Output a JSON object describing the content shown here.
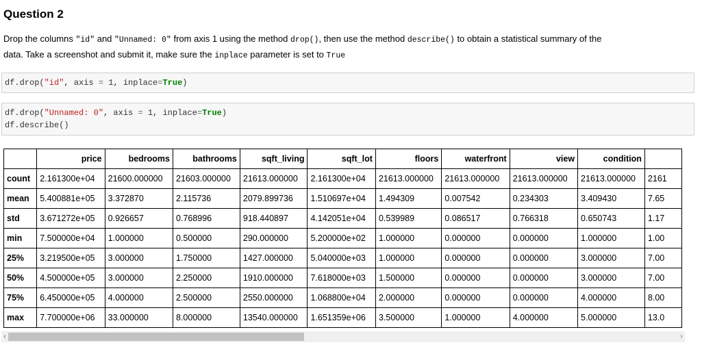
{
  "question": {
    "title": "Question 2",
    "line1_a": "Drop the columns ",
    "line1_b": "\"id\"",
    "line1_c": " and ",
    "line1_d": "\"Unnamed: 0\"",
    "line1_e": " from axis 1 using the method ",
    "line1_f": "drop()",
    "line1_g": ", then use the method ",
    "line1_h": "describe()",
    "line1_i": " to obtain a statistical summary of the",
    "line2_a": "data. Take a screenshot and submit it, make sure the ",
    "line2_b": "inplace",
    "line2_c": " parameter is set to ",
    "line2_d": "True"
  },
  "cell1": {
    "p1": "df.drop(",
    "s1": "\"id\"",
    "p2": ", axis ",
    "o1": "=",
    "p3": " 1, inplace",
    "o2": "=",
    "k1": "True",
    "p4": ")"
  },
  "cell2": {
    "p1": "df.drop(",
    "s1": "\"Unnamed: 0\"",
    "p2": ", axis ",
    "o1": "=",
    "p3": " 1, inplace",
    "o2": "=",
    "k1": "True",
    "p4": ")",
    "line2": "df.describe()"
  },
  "table": {
    "columns": [
      "",
      "price",
      "bedrooms",
      "bathrooms",
      "sqft_living",
      "sqft_lot",
      "floors",
      "waterfront",
      "view",
      "condition",
      ""
    ],
    "rows": [
      {
        "label": "count",
        "cells": [
          "2.161300e+04",
          "21600.000000",
          "21603.000000",
          "21613.000000",
          "2.161300e+04",
          "21613.000000",
          "21613.000000",
          "21613.000000",
          "21613.000000",
          "2161"
        ]
      },
      {
        "label": "mean",
        "cells": [
          "5.400881e+05",
          "3.372870",
          "2.115736",
          "2079.899736",
          "1.510697e+04",
          "1.494309",
          "0.007542",
          "0.234303",
          "3.409430",
          "7.65"
        ]
      },
      {
        "label": "std",
        "cells": [
          "3.671272e+05",
          "0.926657",
          "0.768996",
          "918.440897",
          "4.142051e+04",
          "0.539989",
          "0.086517",
          "0.766318",
          "0.650743",
          "1.17"
        ]
      },
      {
        "label": "min",
        "cells": [
          "7.500000e+04",
          "1.000000",
          "0.500000",
          "290.000000",
          "5.200000e+02",
          "1.000000",
          "0.000000",
          "0.000000",
          "1.000000",
          "1.00"
        ]
      },
      {
        "label": "25%",
        "cells": [
          "3.219500e+05",
          "3.000000",
          "1.750000",
          "1427.000000",
          "5.040000e+03",
          "1.000000",
          "0.000000",
          "0.000000",
          "3.000000",
          "7.00"
        ]
      },
      {
        "label": "50%",
        "cells": [
          "4.500000e+05",
          "3.000000",
          "2.250000",
          "1910.000000",
          "7.618000e+03",
          "1.500000",
          "0.000000",
          "0.000000",
          "3.000000",
          "7.00"
        ]
      },
      {
        "label": "75%",
        "cells": [
          "6.450000e+05",
          "4.000000",
          "2.500000",
          "2550.000000",
          "1.068800e+04",
          "2.000000",
          "0.000000",
          "0.000000",
          "4.000000",
          "8.00"
        ]
      },
      {
        "label": "max",
        "cells": [
          "7.700000e+06",
          "33.000000",
          "8.000000",
          "13540.000000",
          "1.651359e+06",
          "3.500000",
          "1.000000",
          "4.000000",
          "5.000000",
          "13.0"
        ]
      }
    ]
  },
  "scrollbar": {
    "left_arrow": "‹",
    "right_arrow": "›",
    "thumb_fraction": 0.44
  }
}
